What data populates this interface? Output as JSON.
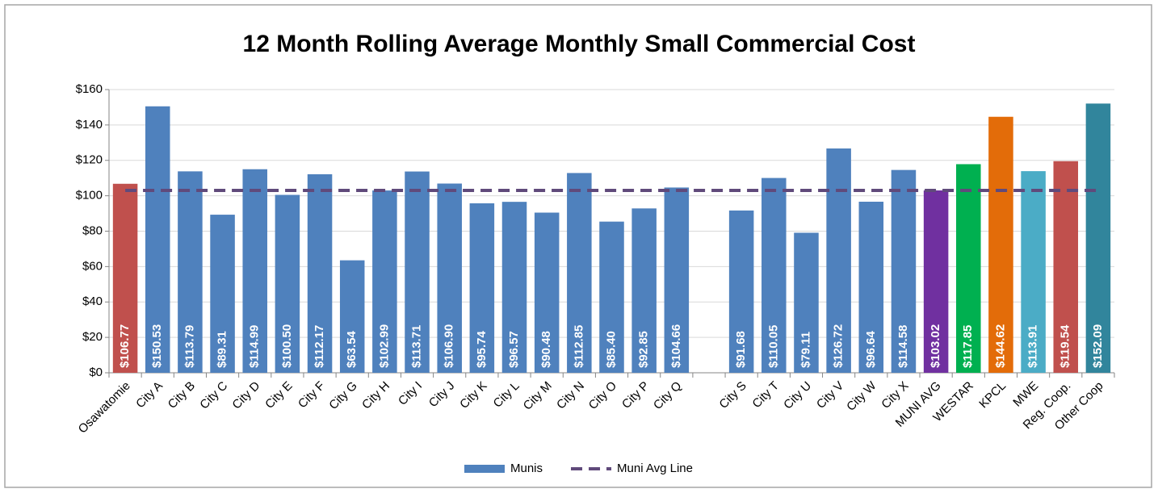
{
  "chart_data": {
    "type": "bar",
    "title": "12 Month Rolling Average Monthly Small Commercial Cost",
    "categories": [
      "Osawatomie",
      "City A",
      "City B",
      "City C",
      "City D",
      "City E",
      "City F",
      "City G",
      "City H",
      "City I",
      "City J",
      "City K",
      "City L",
      "City M",
      "City N",
      "City O",
      "City P",
      "City Q",
      null,
      "City S",
      "City T",
      "City U",
      "City V",
      "City W",
      "City X",
      "MUNI AVG",
      "WESTAR",
      "KPCL",
      "MWE",
      "Reg. Coop.",
      "Other Coop"
    ],
    "series": [
      {
        "name": "Munis",
        "type": "bar",
        "color": "#4f81bd",
        "colors": [
          "#c0504d",
          "#4f81bd",
          "#4f81bd",
          "#4f81bd",
          "#4f81bd",
          "#4f81bd",
          "#4f81bd",
          "#4f81bd",
          "#4f81bd",
          "#4f81bd",
          "#4f81bd",
          "#4f81bd",
          "#4f81bd",
          "#4f81bd",
          "#4f81bd",
          "#4f81bd",
          "#4f81bd",
          "#4f81bd",
          "#4f81bd",
          "#4f81bd",
          "#4f81bd",
          "#4f81bd",
          "#4f81bd",
          "#4f81bd",
          "#4f81bd",
          "#7030a0",
          "#00b050",
          "#e36c09",
          "#4bacc6",
          "#c0504d",
          "#31859c"
        ],
        "values": [
          106.77,
          150.53,
          113.79,
          89.31,
          114.99,
          100.5,
          112.17,
          63.54,
          102.99,
          113.71,
          106.9,
          95.74,
          96.57,
          90.48,
          112.85,
          85.4,
          92.85,
          104.66,
          null,
          91.68,
          110.05,
          79.11,
          126.72,
          96.64,
          114.58,
          103.02,
          117.85,
          144.62,
          113.91,
          119.54,
          152.09
        ],
        "value_labels": [
          "$106.77",
          "$150.53",
          "$113.79",
          "$89.31",
          "$114.99",
          "$100.50",
          "$112.17",
          "$63.54",
          "$102.99",
          "$113.71",
          "$106.90",
          "$95.74",
          "$96.57",
          "$90.48",
          "$112.85",
          "$85.40",
          "$92.85",
          "$104.66",
          null,
          "$91.68",
          "$110.05",
          "$79.11",
          "$126.72",
          "$96.64",
          "$114.58",
          "$103.02",
          "$117.85",
          "$144.62",
          "$113.91",
          "$119.54",
          "$152.09"
        ]
      },
      {
        "name": "Muni Avg Line",
        "type": "line",
        "color": "#604a7b",
        "dashed": true,
        "values": [
          103.02,
          103.02,
          103.02,
          103.02,
          103.02,
          103.02,
          103.02,
          103.02,
          103.02,
          103.02,
          103.02,
          103.02,
          103.02,
          103.02,
          103.02,
          103.02,
          103.02,
          103.02,
          103.02,
          103.02,
          103.02,
          103.02,
          103.02,
          103.02,
          103.02,
          103.02,
          103.02,
          103.02,
          103.02,
          103.02,
          103.02
        ]
      }
    ],
    "ylim": [
      0,
      160
    ],
    "yticks": [
      {
        "value": 0,
        "label": "$0"
      },
      {
        "value": 20,
        "label": "$20"
      },
      {
        "value": 40,
        "label": "$40"
      },
      {
        "value": 60,
        "label": "$60"
      },
      {
        "value": 80,
        "label": "$80"
      },
      {
        "value": 100,
        "label": "$100"
      },
      {
        "value": 120,
        "label": "$120"
      },
      {
        "value": 140,
        "label": "$140"
      },
      {
        "value": 160,
        "label": "$160"
      }
    ],
    "grid": true,
    "legend": "bottom"
  }
}
